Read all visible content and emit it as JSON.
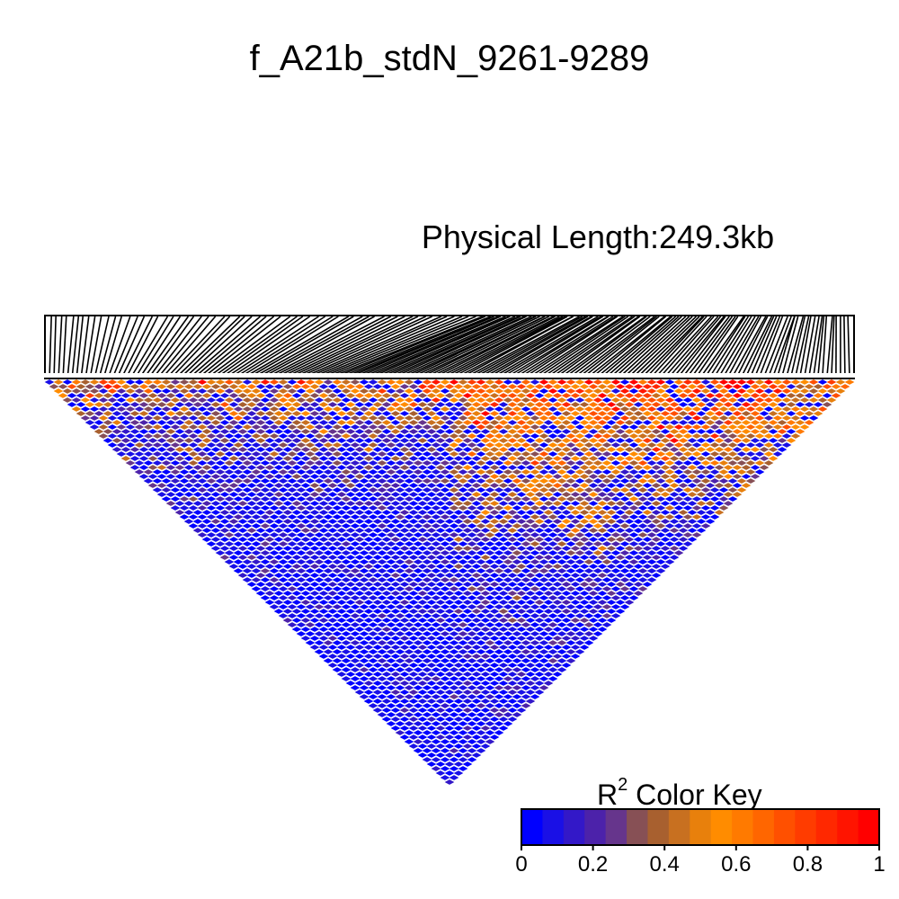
{
  "chart_data": {
    "type": "heatmap",
    "title": "f_A21b_stdN_9261-9289",
    "subtitle": "Physical Length:249.3kb",
    "color_key": {
      "title_base": "R",
      "title_sup": "2",
      "title_rest": " Color Key",
      "ticks": [
        "0",
        "0.2",
        "0.4",
        "0.6",
        "0.8",
        "1"
      ],
      "range": [
        0,
        1
      ],
      "colors": [
        "#0000ff",
        "#1a10e6",
        "#3318c8",
        "#4c22aa",
        "#66358c",
        "#875055",
        "#a8602f",
        "#c87020",
        "#e8800c",
        "#ff8c00",
        "#ff7a00",
        "#ff6600",
        "#ff5000",
        "#ff3c00",
        "#ff2800",
        "#ff1400",
        "#ff0000"
      ]
    },
    "num_snps": 180,
    "description_colors": {
      "low": "#0000ff",
      "high": "#ff0000"
    }
  }
}
